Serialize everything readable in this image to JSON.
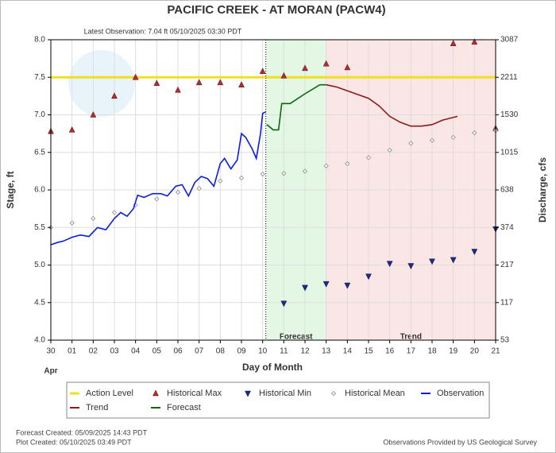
{
  "chart_data": {
    "type": "line",
    "title": "PACIFIC CREEK - AT MORAN  (PACW4)",
    "subtitle": "Latest Observation: 7.04 ft 05/10/2025 03:30 PDT",
    "xlabel": "Day of Month",
    "month_label": "Apr",
    "ylabel": "Stage, ft",
    "y2label": "Discharge, cfs",
    "xlim": [
      0,
      21
    ],
    "xticks": [
      {
        "value": 0,
        "label": "30"
      },
      {
        "value": 1,
        "label": "01"
      },
      {
        "value": 2,
        "label": "02"
      },
      {
        "value": 3,
        "label": "03"
      },
      {
        "value": 4,
        "label": "04"
      },
      {
        "value": 5,
        "label": "05"
      },
      {
        "value": 6,
        "label": "06"
      },
      {
        "value": 7,
        "label": "07"
      },
      {
        "value": 8,
        "label": "08"
      },
      {
        "value": 9,
        "label": "09"
      },
      {
        "value": 10,
        "label": "10"
      },
      {
        "value": 11,
        "label": "11"
      },
      {
        "value": 12,
        "label": "12"
      },
      {
        "value": 13,
        "label": "13"
      },
      {
        "value": 14,
        "label": "14"
      },
      {
        "value": 15,
        "label": "15"
      },
      {
        "value": 16,
        "label": "16"
      },
      {
        "value": 17,
        "label": "17"
      },
      {
        "value": 18,
        "label": "18"
      },
      {
        "value": 19,
        "label": "19"
      },
      {
        "value": 20,
        "label": "20"
      },
      {
        "value": 21,
        "label": "21"
      }
    ],
    "ylim": [
      4,
      8
    ],
    "yticks": [
      {
        "value": 4,
        "label": "4.0"
      },
      {
        "value": 4.5,
        "label": "4.5"
      },
      {
        "value": 5,
        "label": "5.0"
      },
      {
        "value": 5.5,
        "label": "5.5"
      },
      {
        "value": 6,
        "label": "6.0"
      },
      {
        "value": 6.5,
        "label": "6.5"
      },
      {
        "value": 7,
        "label": "7.0"
      },
      {
        "value": 7.5,
        "label": "7.5"
      },
      {
        "value": 8,
        "label": "8.0"
      }
    ],
    "y2lim": [
      53,
      3087
    ],
    "y2ticks": [
      53,
      117,
      217,
      374,
      638,
      1015,
      1530,
      2211,
      3087
    ],
    "grid": true,
    "latest_observation_x": 10.15,
    "regions": [
      {
        "label": "Forecast",
        "start": 10.15,
        "end": 13,
        "color": "#e4f6e4"
      },
      {
        "label": "Trend",
        "start": 13,
        "end": 21,
        "color": "#fbe6e6"
      }
    ],
    "action_level": {
      "name": "Action Level",
      "value": 7.5,
      "color": "#f0e020"
    },
    "series": [
      {
        "name": "Historical Max",
        "color": "#c02828",
        "marker": "up",
        "x": [
          0,
          1,
          2,
          3,
          4,
          5,
          6,
          7,
          8,
          9,
          10,
          11,
          12,
          13,
          14,
          19,
          20,
          21
        ],
        "values": [
          6.78,
          6.8,
          7.0,
          7.25,
          7.5,
          7.42,
          7.33,
          7.43,
          7.43,
          7.4,
          7.58,
          7.52,
          7.62,
          7.68,
          7.63,
          7.95,
          7.97,
          6.82
        ]
      },
      {
        "name": "Historical Min",
        "color": "#1a2a9a",
        "marker": "down",
        "x": [
          11,
          12,
          13,
          14,
          15,
          16,
          17,
          18,
          19,
          20,
          21
        ],
        "values": [
          4.49,
          4.7,
          4.75,
          4.73,
          4.85,
          5.02,
          4.99,
          5.05,
          5.07,
          5.18,
          5.48
        ]
      },
      {
        "name": "Historical Mean",
        "color": "#888888",
        "marker": "diamond",
        "x": [
          0,
          1,
          2,
          3,
          4,
          5,
          6,
          7,
          8,
          9,
          10,
          11,
          12,
          13,
          14,
          15,
          16,
          17,
          18,
          19,
          20,
          21
        ],
        "values": [
          5.5,
          5.56,
          5.62,
          5.7,
          5.8,
          5.88,
          5.97,
          6.02,
          6.12,
          6.16,
          6.21,
          6.22,
          6.25,
          6.32,
          6.35,
          6.43,
          6.53,
          6.62,
          6.66,
          6.7,
          6.76,
          6.79
        ]
      },
      {
        "name": "Observation",
        "color": "#0a1ee0",
        "marker": "line",
        "x": [
          0,
          0.3,
          0.6,
          1,
          1.4,
          1.8,
          2.2,
          2.6,
          3,
          3.3,
          3.6,
          3.9,
          4.1,
          4.4,
          4.8,
          5.2,
          5.5,
          5.9,
          6.2,
          6.5,
          6.8,
          7.1,
          7.4,
          7.7,
          8,
          8.2,
          8.5,
          8.8,
          9,
          9.2,
          9.5,
          9.7,
          9.9,
          10,
          10.15
        ],
        "values": [
          5.27,
          5.3,
          5.32,
          5.37,
          5.4,
          5.38,
          5.5,
          5.47,
          5.62,
          5.7,
          5.65,
          5.75,
          5.93,
          5.9,
          5.95,
          5.95,
          5.92,
          6.05,
          6.07,
          5.92,
          6.1,
          6.18,
          6.15,
          6.05,
          6.35,
          6.42,
          6.28,
          6.4,
          6.75,
          6.7,
          6.55,
          6.42,
          6.75,
          7.02,
          7.04
        ]
      },
      {
        "name": "Trend",
        "color": "#8b1a1a",
        "marker": "line",
        "x": [
          13,
          13.5,
          14,
          15,
          15.5,
          16,
          16.5,
          17,
          17.5,
          18,
          18.5,
          19.2
        ],
        "values": [
          7.4,
          7.37,
          7.32,
          7.22,
          7.12,
          6.98,
          6.9,
          6.85,
          6.85,
          6.87,
          6.93,
          6.98
        ]
      },
      {
        "name": "Forecast",
        "color": "#0a6a0a",
        "marker": "line",
        "x": [
          10.2,
          10.5,
          10.75,
          10.9,
          11.3,
          12,
          12.7,
          13
        ],
        "values": [
          6.87,
          6.8,
          6.8,
          7.15,
          7.15,
          7.28,
          7.4,
          7.4
        ]
      }
    ]
  },
  "footer": {
    "forecast_created": "Forecast Created: 05/09/2025 14:43 PDT",
    "plot_created": "Plot Created: 05/10/2025 03:49 PDT",
    "source": "Observations Provided by US Geological Survey"
  }
}
